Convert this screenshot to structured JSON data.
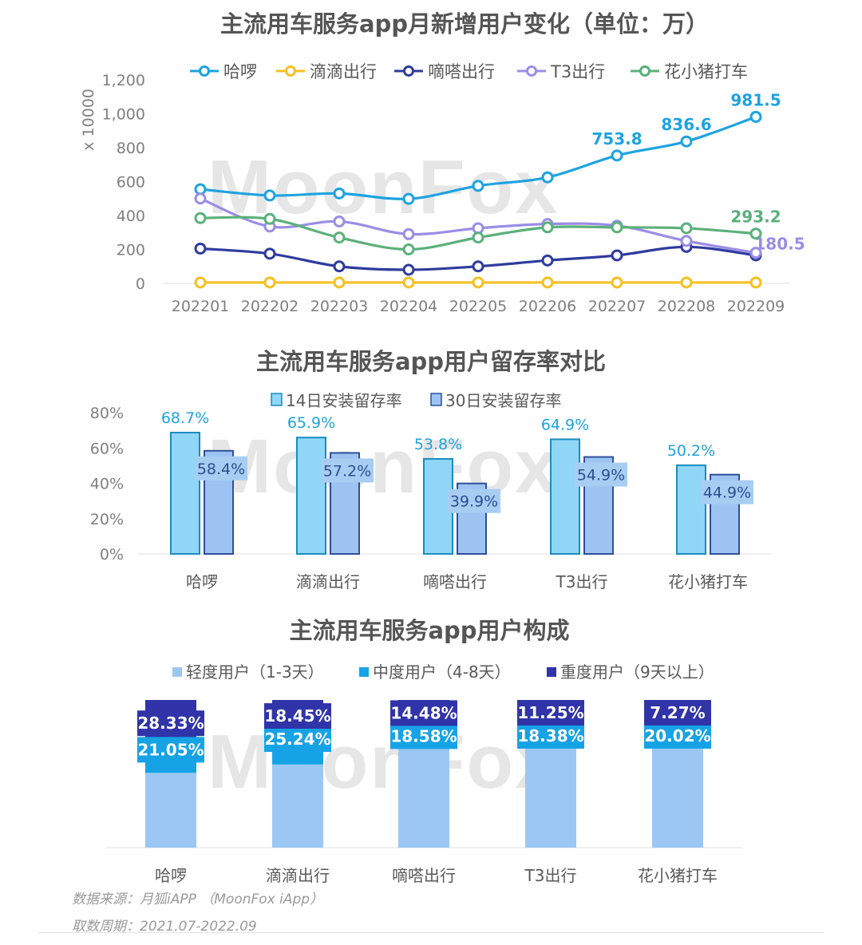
{
  "watermark": "MoonFox",
  "chart_data": [
    {
      "type": "line",
      "title": "主流用车服务app月新增用户变化（单位：万）",
      "ylabel": "x 10000",
      "ylim": [
        0,
        1200
      ],
      "yticks": [
        "0",
        "200",
        "400",
        "600",
        "800",
        "1,000",
        "1,200"
      ],
      "categories": [
        "202201",
        "202202",
        "202203",
        "202204",
        "202205",
        "202206",
        "202207",
        "202208",
        "202209"
      ],
      "series": [
        {
          "name": "哈啰",
          "color": "#1ea3e0",
          "values": [
            555,
            518,
            530,
            498,
            575,
            625,
            753.8,
            836.6,
            981.5
          ],
          "labels": [
            null,
            null,
            null,
            null,
            null,
            null,
            "753.8",
            "836.6",
            "981.5"
          ]
        },
        {
          "name": "滴滴出行",
          "color": "#f5c023",
          "values": [
            5,
            5,
            5,
            5,
            5,
            5,
            5,
            5,
            5
          ],
          "labels": [
            null,
            null,
            null,
            null,
            null,
            null,
            null,
            null,
            null
          ]
        },
        {
          "name": "嘀嗒出行",
          "color": "#2f3c9e",
          "values": [
            205,
            175,
            100,
            80,
            100,
            135,
            165,
            215,
            165
          ],
          "labels": [
            null,
            null,
            null,
            null,
            null,
            null,
            null,
            null,
            null
          ]
        },
        {
          "name": "T3出行",
          "color": "#9a8de6",
          "values": [
            500,
            335,
            365,
            290,
            325,
            350,
            340,
            250,
            180.5
          ],
          "labels": [
            null,
            null,
            null,
            null,
            null,
            null,
            null,
            null,
            "180.5"
          ]
        },
        {
          "name": "花小猪打车",
          "color": "#5bb07a",
          "values": [
            385,
            380,
            270,
            200,
            270,
            330,
            330,
            325,
            293.2
          ],
          "labels": [
            null,
            null,
            null,
            null,
            null,
            null,
            null,
            null,
            "293.2"
          ]
        }
      ]
    },
    {
      "type": "bar",
      "title": "主流用车服务app用户留存率对比",
      "ylim": [
        0,
        80
      ],
      "yticks": [
        "0%",
        "20%",
        "40%",
        "60%",
        "80%"
      ],
      "categories": [
        "哈啰",
        "滴滴出行",
        "嘀嗒出行",
        "T3出行",
        "花小猪打车"
      ],
      "series": [
        {
          "name": "14日安装留存率",
          "color": "#8fd6f7",
          "stroke": "#1a8cc0",
          "values": [
            68.7,
            65.9,
            53.8,
            64.9,
            50.2
          ],
          "labels": [
            "68.7%",
            "65.9%",
            "53.8%",
            "64.9%",
            "50.2%"
          ]
        },
        {
          "name": "30日安装留存率",
          "color": "#9cc3f2",
          "stroke": "#2f4f9a",
          "values": [
            58.4,
            57.2,
            39.9,
            54.9,
            44.9
          ],
          "labels": [
            "58.4%",
            "57.2%",
            "39.9%",
            "54.9%",
            "44.9%"
          ]
        }
      ]
    },
    {
      "type": "bar",
      "stacked": true,
      "title": "主流用车服务app用户构成",
      "categories": [
        "哈啰",
        "滴滴出行",
        "嘀嗒出行",
        "T3出行",
        "花小猪打车"
      ],
      "series": [
        {
          "name": "轻度用户（1-3天）",
          "color": "#9cc7f4",
          "values": [
            50.62,
            56.31,
            66.94,
            70.37,
            72.71
          ],
          "labels": [
            null,
            null,
            null,
            null,
            null
          ]
        },
        {
          "name": "中度用户（4-8天）",
          "color": "#16a3e6",
          "values": [
            21.05,
            25.24,
            18.58,
            18.38,
            20.02
          ],
          "labels": [
            "21.05%",
            "25.24%",
            "18.58%",
            "18.38%",
            "20.02%"
          ]
        },
        {
          "name": "重度用户（9天以上）",
          "color": "#3034a8",
          "values": [
            28.33,
            18.45,
            14.48,
            11.25,
            7.27
          ],
          "labels": [
            "28.33%",
            "18.45%",
            "14.48%",
            "11.25%",
            "7.27%"
          ]
        }
      ]
    }
  ],
  "footer": {
    "source": "数据来源：月狐iAPP （MoonFox iApp）",
    "period": "取数周期：2021.07-2022.09"
  }
}
